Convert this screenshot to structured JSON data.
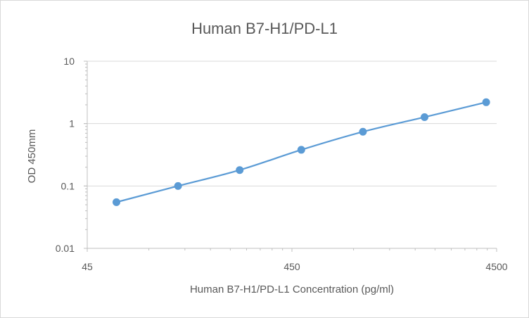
{
  "chart_data": {
    "type": "line",
    "title": "Human B7-H1/PD-L1",
    "xlabel": "Human B7-H1/PD-L1 Concentration (pg/ml)",
    "ylabel": "OD 450mm",
    "x_scale": "log",
    "y_scale": "log",
    "xlim": [
      45,
      4500
    ],
    "ylim": [
      0.01,
      10
    ],
    "x_ticks": [
      "45",
      "450",
      "4500"
    ],
    "y_ticks": [
      "10",
      "1",
      "0.1",
      "0.01"
    ],
    "grid": "horizontal major",
    "legend": "none",
    "series": [
      {
        "color": "#5B9BD5",
        "x": [
          62.5,
          125,
          250,
          500,
          1000,
          2000,
          4000
        ],
        "values": [
          0.055,
          0.1,
          0.18,
          0.38,
          0.74,
          1.27,
          2.2
        ]
      }
    ]
  }
}
